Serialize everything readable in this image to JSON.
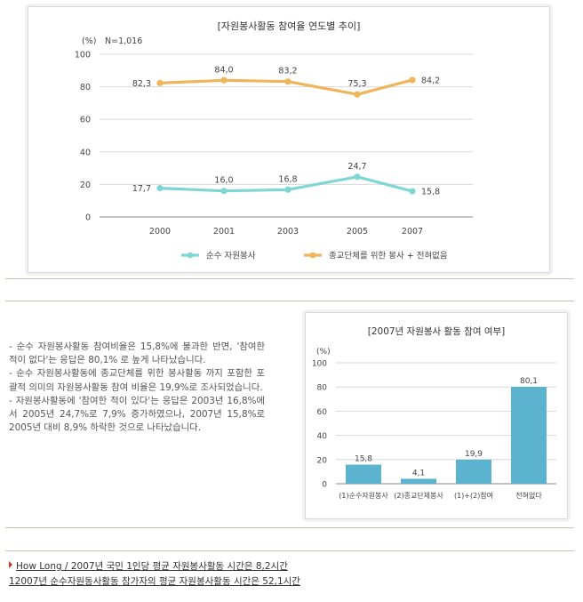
{
  "chart_data": [
    {
      "type": "line",
      "title": "[자원봉사활동 참여율 연도별 추이]",
      "unit": "(%)",
      "note": "N=1,016",
      "x": [
        "2000",
        "2001",
        "2003",
        "2005",
        "2007"
      ],
      "ylim": [
        0,
        100
      ],
      "yticks": [
        0,
        20,
        40,
        60,
        80,
        100
      ],
      "grid": true,
      "legend_position": "bottom",
      "series": [
        {
          "name": "순수 자원봉사",
          "color": "#7fd6d4",
          "values": [
            17.7,
            16.0,
            16.8,
            24.7,
            15.8
          ],
          "labels": [
            "17,7",
            "16,0",
            "16,8",
            "24,7",
            "15,8"
          ]
        },
        {
          "name": "종교단체를 위한 봉사 + 전혀없음",
          "color": "#f0b45a",
          "values": [
            82.3,
            84.0,
            83.2,
            75.3,
            84.2
          ],
          "labels": [
            "82,3",
            "84,0",
            "83,2",
            "75,3",
            "84,2"
          ]
        }
      ]
    },
    {
      "type": "bar",
      "title": "[2007년 자원봉사 활동 참여 여부]",
      "unit": "(%)",
      "categories": [
        "(1)순수자원봉사",
        "(2)종교단체봉사",
        "(1)+(2)참여",
        "전혀없다"
      ],
      "values": [
        15.8,
        4.1,
        19.9,
        80.1
      ],
      "labels": [
        "15,8",
        "4,1",
        "19,9",
        "80,1"
      ],
      "ylim": [
        0,
        100
      ],
      "yticks": [
        0,
        20,
        40,
        60,
        80,
        100
      ],
      "grid": true,
      "bar_color": "#5bb3d0"
    }
  ],
  "description": [
    "- 순수 자원봉사활동 참여비율은 15,8%에 불과한 반면, '참여한 적이 없다'는 응답은 80,1% 로 높게 나타났습니다.",
    "- 순수 자원봉사활동에 종교단체를 위한 봉사활동 까지 포함한 포괄적 의미의 자원봉사활동 참여 비율은 19,9%로 조사되었습니다.",
    "- 자원봉사활동에 '참여한 적이 있다'는 응답은 2003년 16,8%에서 2005년 24,7%로 7,9% 증가하였으나, 2007년 15,8%로 2005년 대비 8,9% 하락한 것으로 나타났습니다."
  ],
  "links": [
    "How Long / 2007년 국민 1인당 평균 자원봉사활동 시간은 8,2시간",
    "12007년 순수자원동사활동 참가자의 평균 자원봉사활동 시간은 52,1시간"
  ]
}
